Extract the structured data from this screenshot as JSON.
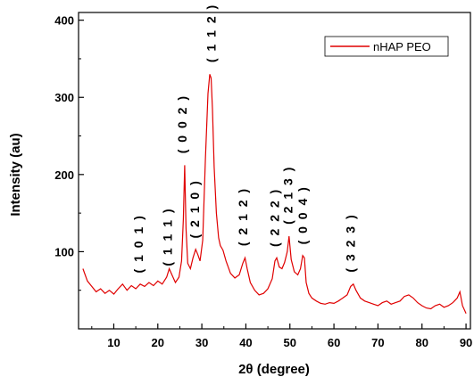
{
  "chart_data": {
    "type": "line",
    "title": "",
    "xlabel": "2θ (degree)",
    "ylabel": "Intensity (au)",
    "xlim": [
      2,
      91
    ],
    "ylim": [
      0,
      410
    ],
    "xticks": [
      10,
      20,
      30,
      40,
      50,
      60,
      70,
      80,
      90
    ],
    "yticks": [
      100,
      200,
      300,
      400
    ],
    "grid": false,
    "legend_position": "top-right",
    "colors": {
      "series": "#e00000",
      "axis": "#000000"
    },
    "series": [
      {
        "name": "nHAP PEO",
        "x": [
          3,
          4,
          5,
          6,
          7,
          8,
          9,
          10,
          11,
          12,
          13,
          14,
          15,
          16,
          17,
          18,
          19,
          20,
          21,
          22,
          22.6,
          23.2,
          24,
          24.8,
          25.4,
          25.8,
          26.1,
          26.4,
          26.8,
          27.4,
          28,
          28.6,
          29.1,
          29.6,
          30.2,
          30.8,
          31.4,
          31.8,
          32.1,
          32.4,
          32.8,
          33.3,
          33.8,
          34.2,
          34.8,
          35.5,
          36.5,
          37.5,
          38.5,
          39.3,
          39.8,
          40.3,
          41,
          42,
          43,
          44,
          45,
          46,
          46.6,
          47,
          47.6,
          48.2,
          48.8,
          49.4,
          49.8,
          50.3,
          51,
          51.8,
          52.4,
          52.9,
          53.3,
          53.7,
          54.3,
          55,
          56,
          57,
          58,
          59,
          60,
          61,
          62,
          63,
          63.8,
          64.4,
          65,
          66,
          67,
          68,
          69,
          70,
          71,
          72,
          73,
          74,
          75,
          76,
          77,
          78,
          79,
          80,
          81,
          82,
          83,
          84,
          85,
          86,
          87,
          88,
          88.6,
          89.2,
          90
        ],
        "y": [
          78,
          62,
          55,
          48,
          52,
          46,
          50,
          45,
          52,
          58,
          50,
          56,
          52,
          58,
          55,
          60,
          56,
          62,
          58,
          67,
          78,
          70,
          60,
          67,
          88,
          142,
          212,
          130,
          85,
          78,
          92,
          103,
          96,
          88,
          115,
          220,
          305,
          330,
          325,
          285,
          210,
          150,
          118,
          108,
          102,
          88,
          72,
          66,
          70,
          85,
          92,
          78,
          60,
          50,
          44,
          46,
          52,
          65,
          88,
          92,
          80,
          78,
          86,
          100,
          120,
          90,
          74,
          70,
          78,
          95,
          92,
          60,
          46,
          40,
          36,
          33,
          32,
          34,
          33,
          36,
          40,
          44,
          55,
          58,
          50,
          40,
          36,
          34,
          32,
          30,
          34,
          36,
          32,
          34,
          36,
          42,
          44,
          40,
          34,
          30,
          27,
          26,
          30,
          32,
          28,
          30,
          34,
          40,
          48,
          30,
          20
        ]
      }
    ],
    "annotations": [
      {
        "text": "( 1 0 1 )",
        "x": 15.8,
        "y": 63
      },
      {
        "text": "( 1 1 1 )",
        "x": 22.4,
        "y": 72
      },
      {
        "text": "( 0 0 2 )",
        "x": 25.8,
        "y": 218
      },
      {
        "text": "( 2 1 0 )",
        "x": 28.6,
        "y": 108
      },
      {
        "text": "( 1 1 2 )",
        "x": 32.4,
        "y": 336
      },
      {
        "text": "( 2 1 2 )",
        "x": 39.6,
        "y": 98
      },
      {
        "text": "( 2 2 2 )",
        "x": 46.8,
        "y": 97
      },
      {
        "text": "( 2 1 3 )",
        "x": 49.8,
        "y": 126
      },
      {
        "text": "( 0 0 4 )",
        "x": 53.2,
        "y": 100
      },
      {
        "text": "( 3 2 3 )",
        "x": 64,
        "y": 64
      }
    ]
  }
}
